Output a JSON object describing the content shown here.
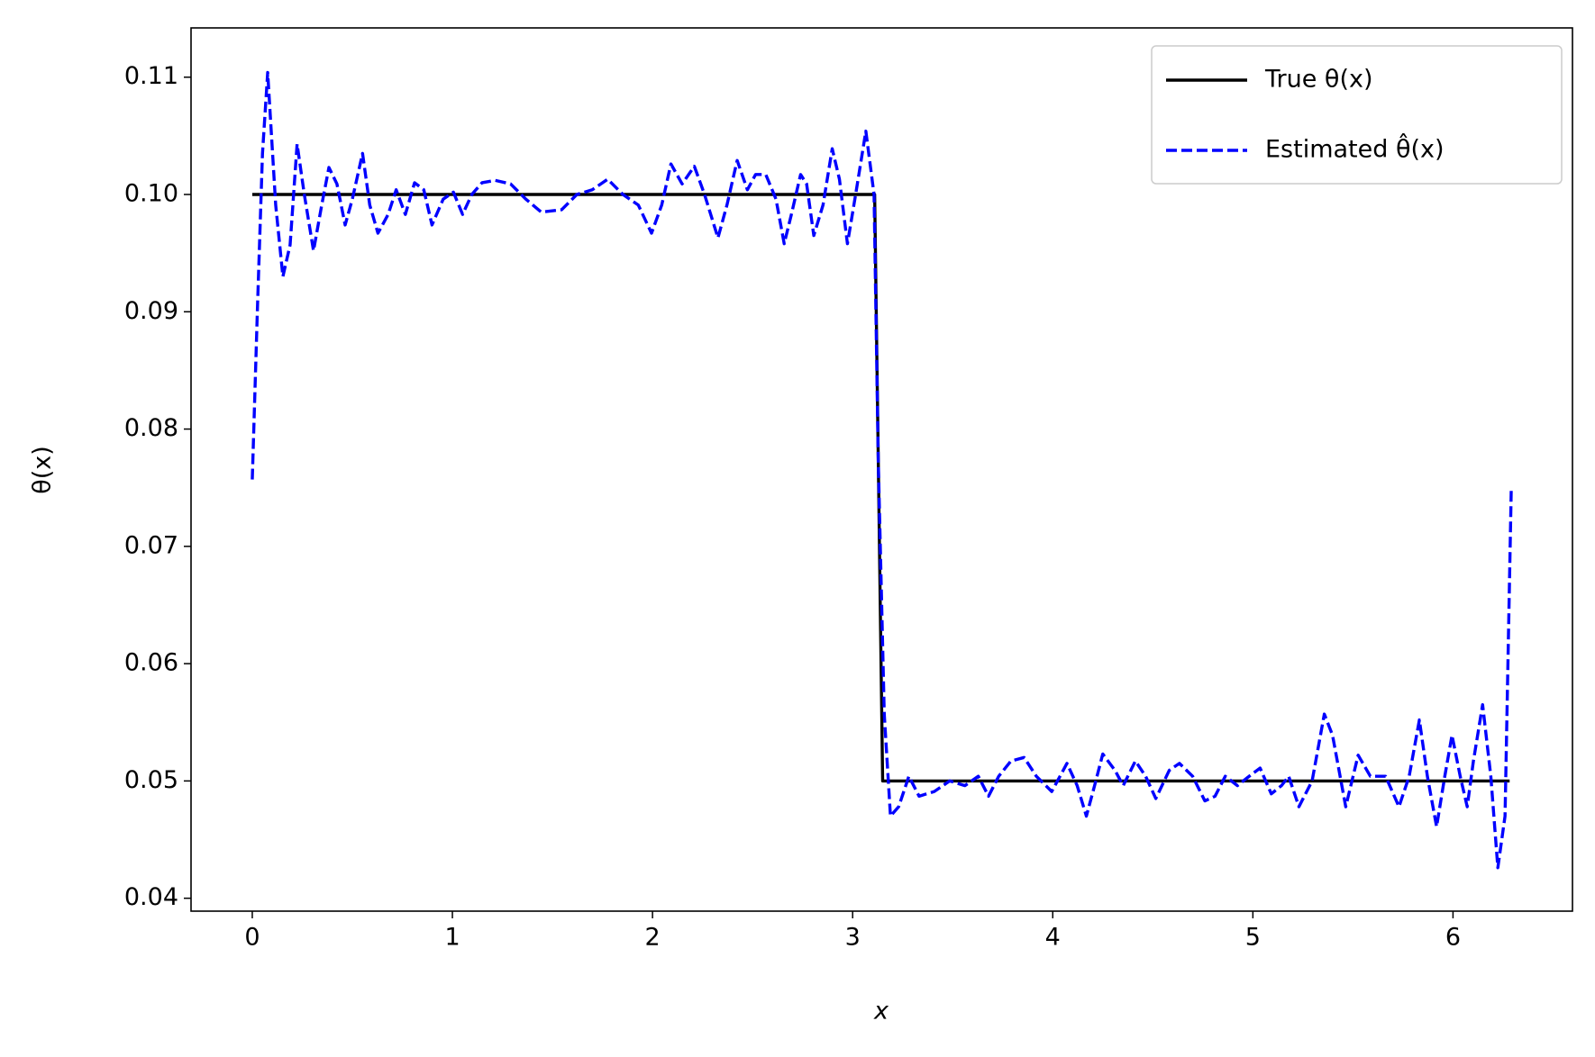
{
  "chart_data": {
    "type": "line",
    "xlabel": "x",
    "ylabel": "θ(x)",
    "xlim": [
      -0.306,
      6.597
    ],
    "ylim": [
      0.0389,
      0.1142
    ],
    "xticks": [
      0,
      1,
      2,
      3,
      4,
      5,
      6
    ],
    "yticks": [
      0.04,
      0.05,
      0.06,
      0.07,
      0.08,
      0.09,
      {
        "value": 0.1,
        "label": "0.10"
      },
      0.11
    ],
    "legend": "upper right",
    "grid": false,
    "series": [
      {
        "name": "True θ(x)",
        "color": "#000000",
        "style": "solid",
        "x": [
          0,
          3.11,
          3.15,
          6.283
        ],
        "values": [
          0.1,
          0.1,
          0.05,
          0.05
        ]
      },
      {
        "name": "Estimated θ̂(x)",
        "color": "#0000ff",
        "style": "dashed",
        "x": [
          0,
          0.026,
          0.051,
          0.077,
          0.117,
          0.153,
          0.189,
          0.224,
          0.26,
          0.306,
          0.347,
          0.383,
          0.423,
          0.464,
          0.5,
          0.551,
          0.587,
          0.628,
          0.679,
          0.719,
          0.765,
          0.811,
          0.857,
          0.898,
          0.954,
          1.005,
          1.051,
          1.097,
          1.148,
          1.214,
          1.291,
          1.367,
          1.444,
          1.546,
          1.622,
          1.699,
          1.776,
          1.852,
          1.929,
          1.995,
          2.046,
          2.092,
          2.148,
          2.209,
          2.26,
          2.327,
          2.372,
          2.423,
          2.474,
          2.515,
          2.566,
          2.617,
          2.658,
          2.694,
          2.74,
          2.77,
          2.806,
          2.852,
          2.898,
          2.934,
          2.974,
          3.015,
          3.066,
          3.107,
          3.128,
          3.158,
          3.189,
          3.23,
          3.281,
          3.332,
          3.408,
          3.485,
          3.561,
          3.628,
          3.679,
          3.73,
          3.791,
          3.857,
          3.918,
          3.995,
          4.071,
          4.122,
          4.168,
          4.209,
          4.25,
          4.311,
          4.352,
          4.413,
          4.464,
          4.515,
          4.582,
          4.633,
          4.699,
          4.76,
          4.811,
          4.862,
          4.923,
          4.974,
          5.036,
          5.092,
          5.143,
          5.179,
          5.23,
          5.296,
          5.357,
          5.398,
          5.464,
          5.526,
          5.587,
          5.663,
          5.73,
          5.781,
          5.832,
          5.872,
          5.918,
          5.959,
          5.995,
          6.036,
          6.071,
          6.102,
          6.148,
          6.189,
          6.224,
          6.26,
          6.291
        ],
        "values": [
          0.0757,
          0.0904,
          0.1035,
          0.1104,
          0.0991,
          0.093,
          0.0957,
          0.1043,
          0.1,
          0.0952,
          0.0991,
          0.1023,
          0.1009,
          0.0974,
          0.0996,
          0.1035,
          0.0991,
          0.0967,
          0.0983,
          0.1004,
          0.0983,
          0.101,
          0.1004,
          0.0974,
          0.0996,
          0.1002,
          0.0983,
          0.1,
          0.101,
          0.1012,
          0.1009,
          0.0996,
          0.0985,
          0.0987,
          0.1,
          0.1004,
          0.1013,
          0.1,
          0.0991,
          0.0967,
          0.0991,
          0.1026,
          0.1009,
          0.1024,
          0.1,
          0.0963,
          0.0991,
          0.1029,
          0.1004,
          0.1017,
          0.1017,
          0.0996,
          0.0958,
          0.0983,
          0.1017,
          0.1009,
          0.0965,
          0.0991,
          0.1039,
          0.1013,
          0.0958,
          0.1,
          0.1054,
          0.1,
          0.0774,
          0.0557,
          0.047,
          0.0478,
          0.0504,
          0.0487,
          0.0491,
          0.05,
          0.0496,
          0.0504,
          0.0487,
          0.0504,
          0.0517,
          0.052,
          0.0504,
          0.0491,
          0.0515,
          0.0496,
          0.047,
          0.0496,
          0.0523,
          0.0509,
          0.0496,
          0.0517,
          0.0504,
          0.0485,
          0.0509,
          0.0515,
          0.0504,
          0.0483,
          0.0487,
          0.0504,
          0.0496,
          0.0503,
          0.0511,
          0.0489,
          0.0496,
          0.0504,
          0.0478,
          0.05,
          0.0557,
          0.0539,
          0.0478,
          0.0522,
          0.0504,
          0.0504,
          0.0478,
          0.0504,
          0.0552,
          0.0504,
          0.0461,
          0.0504,
          0.0539,
          0.0504,
          0.0478,
          0.0517,
          0.0565,
          0.0504,
          0.0426,
          0.047,
          0.0748
        ]
      }
    ]
  }
}
